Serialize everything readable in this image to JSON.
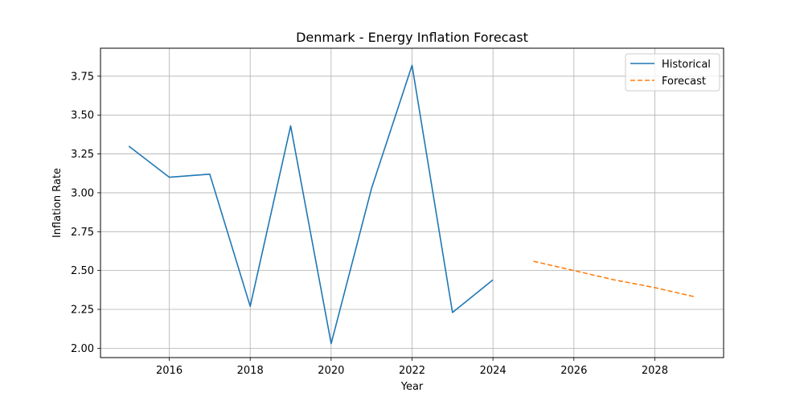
{
  "chart_data": {
    "type": "line",
    "title": "Denmark - Energy Inflation Forecast",
    "xlabel": "Year",
    "ylabel": "Inflation Rate",
    "xlim": [
      2014.3,
      2029.7
    ],
    "ylim": [
      1.94,
      3.93
    ],
    "xticks": [
      2016,
      2018,
      2020,
      2022,
      2024,
      2026,
      2028
    ],
    "yticks": [
      2.0,
      2.25,
      2.5,
      2.75,
      3.0,
      3.25,
      3.5,
      3.75
    ],
    "ytick_labels": [
      "2.00",
      "2.25",
      "2.50",
      "2.75",
      "3.00",
      "3.25",
      "3.50",
      "3.75"
    ],
    "grid": true,
    "legend_position": "top-right",
    "series": [
      {
        "name": "Historical",
        "color": "#1f77b4",
        "style": "solid",
        "x": [
          2015,
          2016,
          2017,
          2018,
          2019,
          2020,
          2021,
          2022,
          2023,
          2024
        ],
        "y": [
          3.3,
          3.1,
          3.12,
          2.27,
          3.43,
          2.03,
          3.03,
          3.82,
          2.23,
          2.44
        ]
      },
      {
        "name": "Forecast",
        "color": "#ff7f0e",
        "style": "dashed",
        "x": [
          2025,
          2026,
          2027,
          2028,
          2029
        ],
        "y": [
          2.56,
          2.5,
          2.44,
          2.39,
          2.33
        ]
      }
    ]
  }
}
